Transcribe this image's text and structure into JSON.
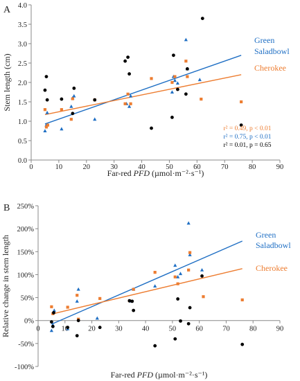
{
  "chart_data": [
    {
      "type": "scatter",
      "panel_label": "A",
      "ylabel": "Stem length (cm)",
      "xlabel_parts": {
        "pre": "Far-red ",
        "italic": "PFD",
        "post": " (µmol·m⁻²·s⁻¹)"
      },
      "xlim": [
        0,
        90
      ],
      "ylim": [
        0,
        4.0
      ],
      "xticks": [
        "0",
        "10",
        "20",
        "30",
        "40",
        "50",
        "60",
        "70",
        "80",
        "90"
      ],
      "yticks": [
        "0.0",
        "0.5",
        "1.0",
        "1.5",
        "2.0",
        "2.5",
        "3.0",
        "3.5",
        "4.0"
      ],
      "series": [
        {
          "name": "Green Saladbowl",
          "label_lines": [
            "Green",
            "Saladbowl"
          ],
          "color": "#1F6FC4",
          "marker": "triangle",
          "points": [
            [
              5,
              0.75
            ],
            [
              5.5,
              0.9
            ],
            [
              5.8,
              1.22
            ],
            [
              11,
              0.8
            ],
            [
              14.5,
              1.38
            ],
            [
              15,
              1.6
            ],
            [
              15.5,
              1.65
            ],
            [
              23,
              1.05
            ],
            [
              34.5,
              1.45
            ],
            [
              35.5,
              1.38
            ],
            [
              36,
              1.65
            ],
            [
              51,
              1.75
            ],
            [
              51.5,
              2.15
            ],
            [
              52,
              2.05
            ],
            [
              53,
              1.98
            ],
            [
              56,
              3.1
            ],
            [
              56.5,
              2.35
            ],
            [
              61,
              2.07
            ]
          ],
          "fit": [
            [
              5,
              0.93
            ],
            [
              76,
              2.7
            ]
          ]
        },
        {
          "name": "Cherokee",
          "color": "#ED7D31",
          "marker": "square",
          "points": [
            [
              5,
              1.3
            ],
            [
              5.5,
              0.85
            ],
            [
              6,
              0.9
            ],
            [
              11,
              1.3
            ],
            [
              14.5,
              1.05
            ],
            [
              15,
              1.58
            ],
            [
              23,
              1.55
            ],
            [
              34,
              1.45
            ],
            [
              35,
              1.7
            ],
            [
              36,
              1.45
            ],
            [
              43.5,
              2.1
            ],
            [
              51,
              2.0
            ],
            [
              52,
              2.15
            ],
            [
              56,
              2.55
            ],
            [
              56.5,
              2.15
            ],
            [
              61.5,
              1.57
            ],
            [
              76,
              1.5
            ]
          ],
          "fit": [
            [
              5,
              1.17
            ],
            [
              76,
              2.2
            ]
          ]
        },
        {
          "name": "",
          "color": "#000000",
          "marker": "circle",
          "points": [
            [
              5,
              1.8
            ],
            [
              5.5,
              2.15
            ],
            [
              5.8,
              1.55
            ],
            [
              11,
              1.57
            ],
            [
              15,
              1.2
            ],
            [
              15.5,
              1.85
            ],
            [
              23,
              1.55
            ],
            [
              34,
              2.55
            ],
            [
              35,
              2.65
            ],
            [
              35.5,
              2.22
            ],
            [
              43.5,
              0.82
            ],
            [
              51,
              1.1
            ],
            [
              51.5,
              2.7
            ],
            [
              53,
              1.82
            ],
            [
              56,
              1.7
            ],
            [
              56.5,
              2.35
            ],
            [
              62,
              3.65
            ],
            [
              76,
              0.9
            ]
          ]
        }
      ],
      "stats": [
        {
          "text": "r² = 0.49, p < 0.01",
          "color": "#ED7D31"
        },
        {
          "text": "r² = 0.75, p < 0.01",
          "color": "#1F6FC4"
        },
        {
          "text": "r² = 0.01, p = 0.65",
          "color": "#000000"
        }
      ]
    },
    {
      "type": "scatter",
      "panel_label": "B",
      "ylabel_lines": [
        "Relative change in stem length"
      ],
      "xlabel_parts": {
        "pre": "Far-red ",
        "italic": "PFD",
        "post": " (µmol·m⁻²·s⁻¹)"
      },
      "xlim": [
        0,
        90
      ],
      "ylim": [
        -100,
        250
      ],
      "xticks": [
        "0",
        "10",
        "20",
        "30",
        "40",
        "50",
        "60",
        "70",
        "80",
        "90"
      ],
      "yticks": [
        "-100%",
        "-50%",
        "0%",
        "50%",
        "100%",
        "150%",
        "200%",
        "250%"
      ],
      "series": [
        {
          "name": "Green Saladbowl",
          "label_lines": [
            "Green",
            "Saladbowl"
          ],
          "color": "#1F6FC4",
          "marker": "triangle",
          "points": [
            [
              5,
              -22
            ],
            [
              5.5,
              -10
            ],
            [
              6,
              22
            ],
            [
              11,
              -18
            ],
            [
              14.5,
              42
            ],
            [
              15,
              68
            ],
            [
              22,
              5
            ],
            [
              34.5,
              42
            ],
            [
              35.5,
              68
            ],
            [
              43.5,
              75
            ],
            [
              51,
              120
            ],
            [
              52,
              95
            ],
            [
              53,
              102
            ],
            [
              56,
              212
            ],
            [
              56.5,
              143
            ],
            [
              61,
              110
            ]
          ],
          "fit": [
            [
              5,
              -8
            ],
            [
              76,
              173
            ]
          ]
        },
        {
          "name": "Cherokee",
          "color": "#ED7D31",
          "marker": "square",
          "points": [
            [
              5,
              30
            ],
            [
              5.5,
              15
            ],
            [
              11,
              29
            ],
            [
              14.5,
              55
            ],
            [
              15,
              3
            ],
            [
              23,
              48
            ],
            [
              34,
              43
            ],
            [
              35.5,
              68
            ],
            [
              43.5,
              105
            ],
            [
              51,
              95
            ],
            [
              52,
              80
            ],
            [
              56,
              110
            ],
            [
              56.5,
              148
            ],
            [
              61.5,
              52
            ],
            [
              76,
              45
            ]
          ],
          "fit": [
            [
              5,
              14
            ],
            [
              76,
              113
            ]
          ]
        },
        {
          "name": "",
          "color": "#000000",
          "marker": "circle",
          "points": [
            [
              5,
              -3
            ],
            [
              5.5,
              -13
            ],
            [
              5.8,
              17
            ],
            [
              11,
              -15
            ],
            [
              14.5,
              -33
            ],
            [
              15,
              0
            ],
            [
              23,
              -15
            ],
            [
              34,
              43
            ],
            [
              35,
              42
            ],
            [
              35.5,
              22
            ],
            [
              43.5,
              -55
            ],
            [
              51,
              -40
            ],
            [
              52,
              47
            ],
            [
              53,
              -1
            ],
            [
              56,
              -7
            ],
            [
              56.5,
              28
            ],
            [
              61,
              97
            ],
            [
              76,
              -52
            ]
          ]
        }
      ]
    }
  ]
}
